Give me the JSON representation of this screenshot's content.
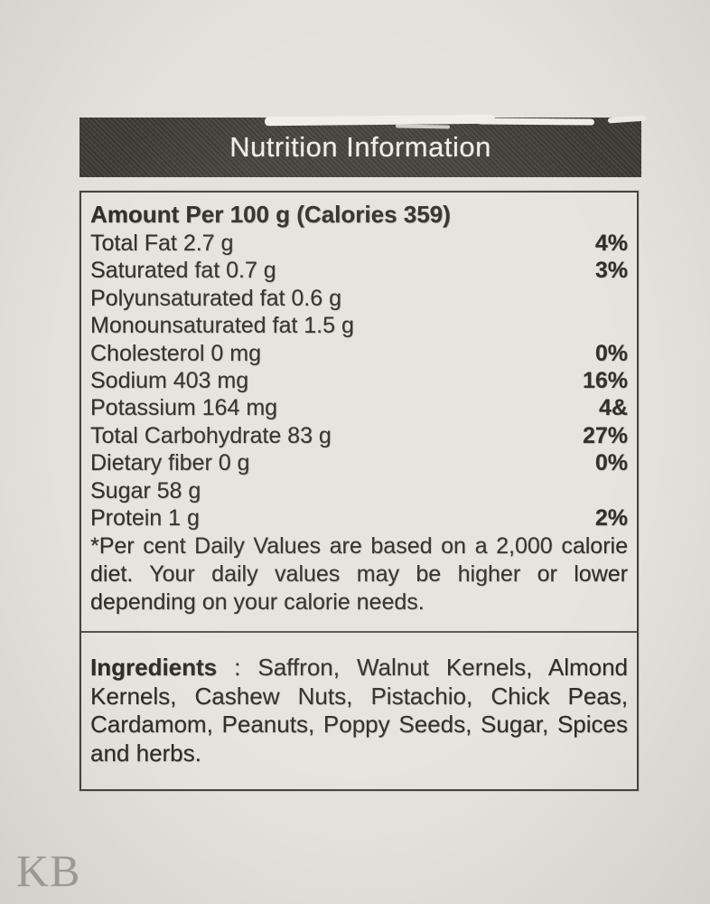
{
  "header": {
    "title": "Nutrition Information"
  },
  "panel": {
    "amount_line": "Amount Per 100 g (Calories 359)",
    "rows": [
      {
        "label": "Total Fat 2.7 g",
        "value": "4%"
      },
      {
        "label": "Saturated fat 0.7 g",
        "value": "3%"
      },
      {
        "label": "Polyunsaturated fat 0.6 g",
        "value": ""
      },
      {
        "label": "Monounsaturated fat 1.5 g",
        "value": ""
      },
      {
        "label": "Cholesterol 0 mg",
        "value": "0%"
      },
      {
        "label": "Sodium 403 mg",
        "value": "16%"
      },
      {
        "label": "Potassium 164 mg",
        "value": "4&"
      },
      {
        "label": "Total Carbohydrate 83 g",
        "value": "27%"
      },
      {
        "label": "Dietary fiber 0 g",
        "value": "0%"
      },
      {
        "label": "Sugar 58 g",
        "value": ""
      },
      {
        "label": "Protein 1 g",
        "value": "2%"
      }
    ],
    "footnote": "*Per cent Daily Values are based on a 2,000 calorie diet. Your daily values may be higher or lower depending on your calorie needs.",
    "ingredients_label": "Ingredients",
    "ingredients_separator": " : ",
    "ingredients_text": "Saffron, Walnut Kernels, Almond Kernels, Cashew Nuts, Pistachio, Chick Peas, Cardamom, Peanuts, Poppy Seeds, Sugar, Spices and herbs."
  },
  "watermark": "KB",
  "colors": {
    "page_bg": "#e4e1da",
    "label_bg": "#e6e3dc",
    "header_bg": "#3c3b36",
    "header_text": "#eeede7",
    "ink": "#2e2c27",
    "border_ink": "#45433e",
    "watermark": "#a2a09a"
  }
}
